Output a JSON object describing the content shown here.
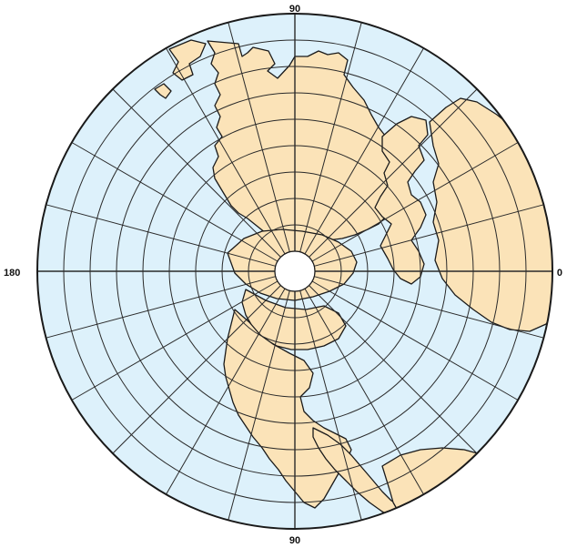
{
  "map": {
    "projection": "polar azimuthal",
    "labels": {
      "top": "90",
      "bottom": "90",
      "left": "180",
      "right": "0"
    },
    "colors": {
      "ocean": "#ddf1fb",
      "land": "#fbe3b8",
      "outline": "#1a1a1a",
      "grid": "#2a2a2a",
      "background": "#ffffff"
    },
    "graticule": {
      "meridian_step_deg": 15,
      "parallel_step_deg": 10,
      "parallels_shown": 8
    }
  }
}
